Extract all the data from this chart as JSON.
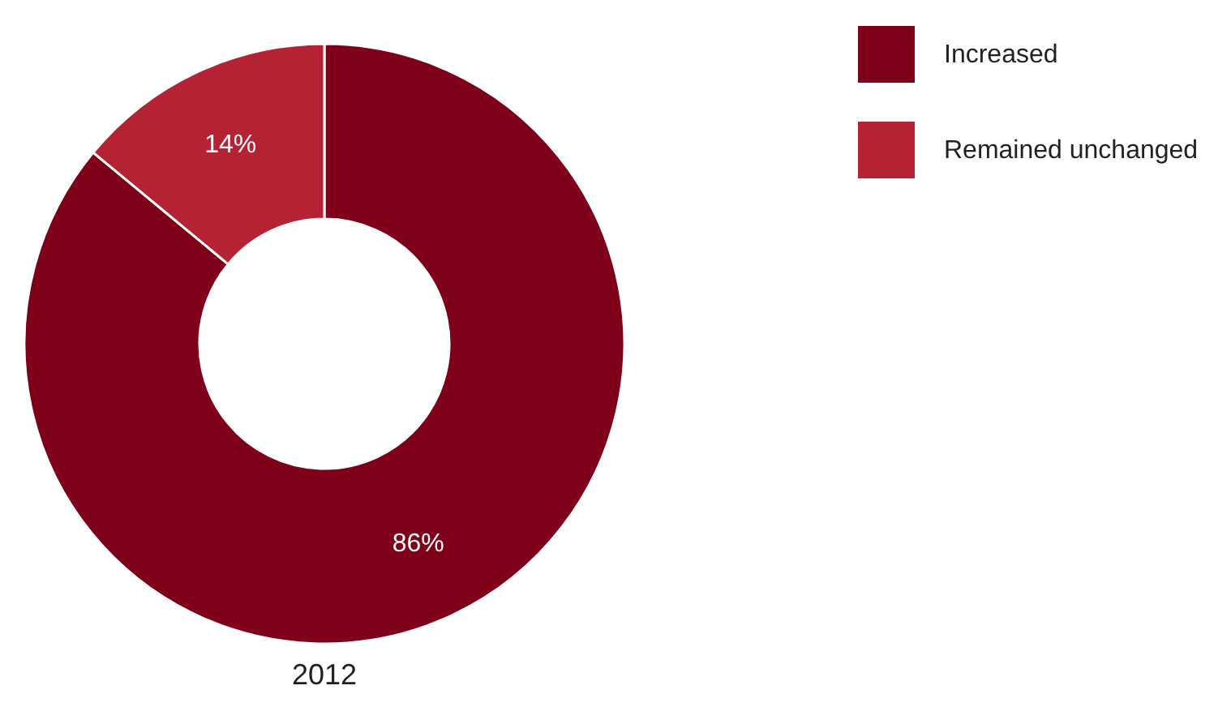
{
  "chart_data": {
    "type": "donut",
    "title": "2012",
    "categories": [
      "Increased",
      "Remained unchanged"
    ],
    "values": [
      86,
      14
    ],
    "colors": [
      "#7f0019",
      "#b52233"
    ],
    "value_labels": [
      "86%",
      "14%"
    ],
    "legend": "right"
  }
}
